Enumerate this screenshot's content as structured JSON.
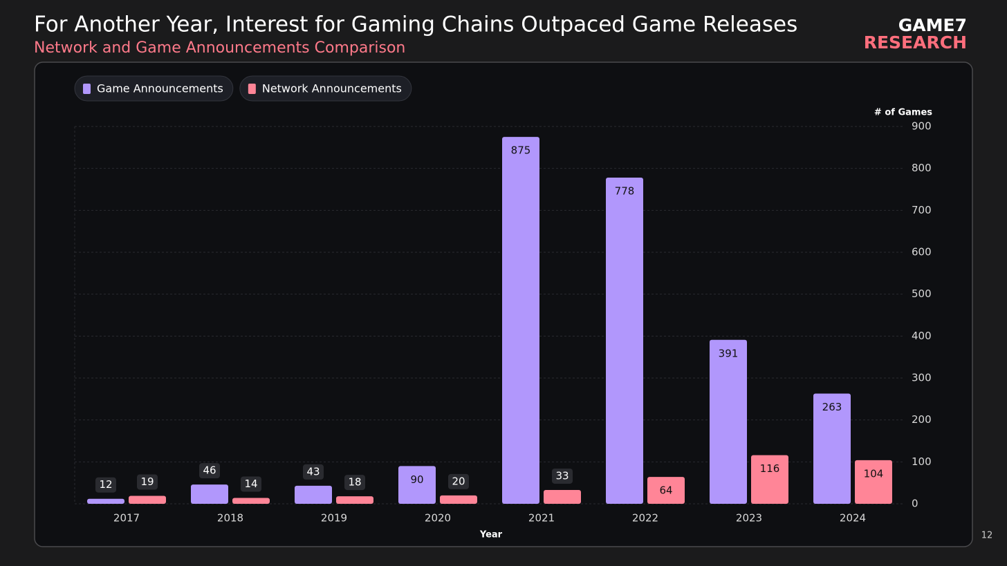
{
  "chart_data": {
    "type": "bar",
    "title": "For Another Year, Interest for Gaming Chains Outpaced Game Releases",
    "subtitle": "Network and Game Announcements Comparison",
    "categories": [
      "2017",
      "2018",
      "2019",
      "2020",
      "2021",
      "2022",
      "2023",
      "2024"
    ],
    "series": [
      {
        "name": "Game Announcements",
        "color": "#b197fc",
        "values": [
          12,
          46,
          43,
          90,
          875,
          778,
          391,
          263
        ]
      },
      {
        "name": "Network Announcements",
        "color": "#ff8597",
        "values": [
          19,
          14,
          18,
          20,
          33,
          64,
          116,
          104
        ]
      }
    ],
    "ylim": [
      0,
      900
    ],
    "yticks": [
      0,
      100,
      200,
      300,
      400,
      500,
      600,
      700,
      800,
      900
    ],
    "y_label": "# of Games",
    "x_label": "Year",
    "grid": true,
    "legend": "top-left"
  },
  "logo": {
    "line1": "GAME7",
    "line2": "RESEARCH"
  },
  "page_number": "12"
}
